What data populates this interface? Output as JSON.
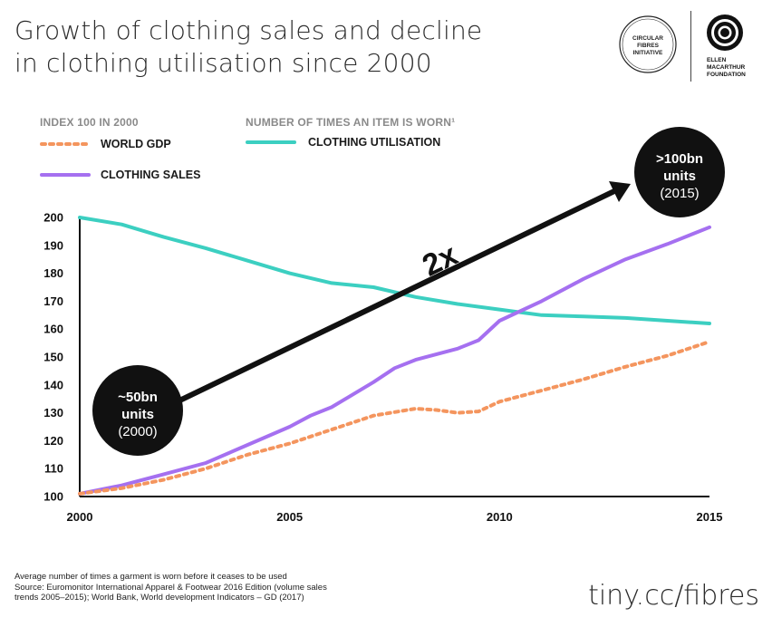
{
  "title_line1": "Growth of clothing sales and decline",
  "title_line2": "in clothing utilisation since 2000",
  "logos": {
    "cfi_line1": "CIRCULAR",
    "cfi_line2": "FIBRES",
    "cfi_line3": "INITIATIVE",
    "emf_line1": "ELLEN",
    "emf_line2": "MACARTHUR",
    "emf_line3": "FOUNDATION"
  },
  "legend": {
    "left_heading": "INDEX 100 IN 2000",
    "right_heading": "NUMBER OF TIMES AN ITEM IS WORN¹",
    "gdp_label": "WORLD GDP",
    "sales_label": "CLOTHING SALES",
    "utilisation_label": "CLOTHING UTILISATION"
  },
  "colors": {
    "gdp": "#f4955e",
    "sales": "#a570f0",
    "utilisation": "#3ccfc1",
    "arrow": "#111111",
    "bubble": "#111111"
  },
  "chart_data": {
    "type": "line",
    "xlim": [
      2000,
      2015
    ],
    "ylim": [
      100,
      200
    ],
    "x_ticks": [
      "2000",
      "2005",
      "2010",
      "2015"
    ],
    "y_ticks": [
      "100",
      "110",
      "120",
      "130",
      "140",
      "150",
      "160",
      "170",
      "180",
      "190",
      "200"
    ],
    "series": [
      {
        "name": "CLOTHING UTILISATION",
        "x": [
          2000,
          2001,
          2002,
          2003,
          2004,
          2005,
          2006,
          2007,
          2008,
          2009,
          2010,
          2011,
          2012,
          2013,
          2014,
          2015
        ],
        "values": [
          200,
          197.5,
          193,
          189,
          184.5,
          180,
          176.5,
          175,
          171.5,
          169,
          167,
          165,
          164.5,
          164,
          163,
          162
        ]
      },
      {
        "name": "CLOTHING SALES",
        "x": [
          2000,
          2001,
          2002,
          2003,
          2004,
          2005,
          2005.5,
          2006,
          2007,
          2007.5,
          2008,
          2009,
          2009.5,
          2010,
          2011,
          2012,
          2013,
          2014,
          2015
        ],
        "values": [
          101,
          104,
          108,
          112,
          118.5,
          125,
          129,
          132,
          141,
          146,
          149,
          153,
          156,
          163,
          170,
          178,
          185,
          190.5,
          196.5
        ]
      },
      {
        "name": "WORLD GDP",
        "x": [
          2000,
          2001,
          2002,
          2003,
          2004,
          2005,
          2006,
          2007,
          2008,
          2008.5,
          2009,
          2009.5,
          2010,
          2011,
          2012,
          2013,
          2014,
          2015
        ],
        "values": [
          101,
          103,
          106,
          110,
          115,
          119,
          124,
          129,
          131.5,
          131,
          130,
          130.5,
          134,
          138,
          142,
          146.5,
          150.5,
          155.5
        ]
      }
    ],
    "annotations": {
      "start_bubble": {
        "line1": "~50bn",
        "line2": "units",
        "line3": "(2000)"
      },
      "end_bubble": {
        "line1": ">100bn",
        "line2": "units",
        "line3": "(2015)"
      },
      "arrow_label": "2x"
    }
  },
  "footnote": {
    "line1": "Average number of times a garment is worn before it ceases to be used",
    "line2": "Source: Euromonitor International Apparel & Footwear 2016 Edition (volume sales",
    "line3": "trends 2005–2015); World Bank, World development Indicators – GD (2017)"
  },
  "url": "tiny.cc/fibres"
}
